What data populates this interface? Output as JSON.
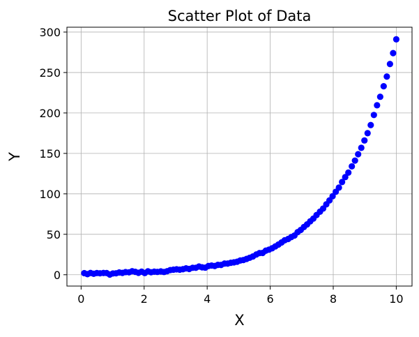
{
  "chart_data": {
    "type": "scatter",
    "title": "Scatter Plot of Data",
    "xlabel": "X",
    "ylabel": "Y",
    "xlim": [
      -0.45,
      10.5
    ],
    "ylim": [
      -14,
      306
    ],
    "xticks": [
      0,
      2,
      4,
      6,
      8,
      10
    ],
    "yticks": [
      0,
      50,
      100,
      150,
      200,
      250,
      300
    ],
    "grid": true,
    "marker_color": "#0000ff",
    "series": [
      {
        "points": [
          [
            0.1,
            2.0
          ],
          [
            0.2,
            0.8
          ],
          [
            0.3,
            2.2
          ],
          [
            0.4,
            1.2
          ],
          [
            0.5,
            2.1
          ],
          [
            0.6,
            1.8
          ],
          [
            0.71,
            2.2
          ],
          [
            0.81,
            2.1
          ],
          [
            0.91,
            0.2
          ],
          [
            1.01,
            1.6
          ],
          [
            1.11,
            1.8
          ],
          [
            1.21,
            2.8
          ],
          [
            1.31,
            2.3
          ],
          [
            1.41,
            3.3
          ],
          [
            1.52,
            3.0
          ],
          [
            1.62,
            4.3
          ],
          [
            1.72,
            3.6
          ],
          [
            1.82,
            2.4
          ],
          [
            1.92,
            3.8
          ],
          [
            2.02,
            2.1
          ],
          [
            2.12,
            4.2
          ],
          [
            2.22,
            3.1
          ],
          [
            2.32,
            3.8
          ],
          [
            2.42,
            3.5
          ],
          [
            2.53,
            4.1
          ],
          [
            2.63,
            3.4
          ],
          [
            2.73,
            4.4
          ],
          [
            2.83,
            5.8
          ],
          [
            2.93,
            6.3
          ],
          [
            3.03,
            6.7
          ],
          [
            3.13,
            6.3
          ],
          [
            3.23,
            6.8
          ],
          [
            3.33,
            7.9
          ],
          [
            3.43,
            7.1
          ],
          [
            3.54,
            8.6
          ],
          [
            3.64,
            8.6
          ],
          [
            3.74,
            10.2
          ],
          [
            3.84,
            9.2
          ],
          [
            3.94,
            8.8
          ],
          [
            4.04,
            10.8
          ],
          [
            4.14,
            11.4
          ],
          [
            4.24,
            10.8
          ],
          [
            4.34,
            12.2
          ],
          [
            4.44,
            12.1
          ],
          [
            4.55,
            13.8
          ],
          [
            4.65,
            13.8
          ],
          [
            4.75,
            14.8
          ],
          [
            4.85,
            15.3
          ],
          [
            4.95,
            16.1
          ],
          [
            5.05,
            17.6
          ],
          [
            5.15,
            18.2
          ],
          [
            5.25,
            19.5
          ],
          [
            5.35,
            21.0
          ],
          [
            5.45,
            22.6
          ],
          [
            5.56,
            25.0
          ],
          [
            5.66,
            26.8
          ],
          [
            5.76,
            27.0
          ],
          [
            5.86,
            29.8
          ],
          [
            5.96,
            31.0
          ],
          [
            6.06,
            32.7
          ],
          [
            6.16,
            35.0
          ],
          [
            6.26,
            37.3
          ],
          [
            6.36,
            39.9
          ],
          [
            6.46,
            42.6
          ],
          [
            6.57,
            44.2
          ],
          [
            6.67,
            46.6
          ],
          [
            6.77,
            48.5
          ],
          [
            6.87,
            52.6
          ],
          [
            6.97,
            55.4
          ],
          [
            7.07,
            59.0
          ],
          [
            7.17,
            62.2
          ],
          [
            7.27,
            66.0
          ],
          [
            7.37,
            69.4
          ],
          [
            7.47,
            73.8
          ],
          [
            7.58,
            78.0
          ],
          [
            7.68,
            81.8
          ],
          [
            7.78,
            87.0
          ],
          [
            7.88,
            91.9
          ],
          [
            7.98,
            97.1
          ],
          [
            8.08,
            102.5
          ],
          [
            8.18,
            107.7
          ],
          [
            8.28,
            114.6
          ],
          [
            8.38,
            120.7
          ],
          [
            8.48,
            126.3
          ],
          [
            8.59,
            134.0
          ],
          [
            8.69,
            141.1
          ],
          [
            8.79,
            149.0
          ],
          [
            8.89,
            156.9
          ],
          [
            8.99,
            166.0
          ],
          [
            9.09,
            175.0
          ],
          [
            9.19,
            185.0
          ],
          [
            9.29,
            197.5
          ],
          [
            9.39,
            209.5
          ],
          [
            9.49,
            220.0
          ],
          [
            9.6,
            233.0
          ],
          [
            9.7,
            245.0
          ],
          [
            9.8,
            260.5
          ],
          [
            9.9,
            274.0
          ],
          [
            10.0,
            291.0
          ]
        ]
      }
    ]
  }
}
